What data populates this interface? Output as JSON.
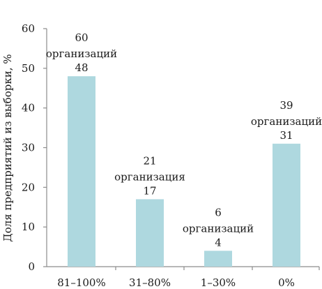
{
  "chart_data": {
    "type": "bar",
    "title": "",
    "xlabel": "",
    "ylabel": "Доля предприятий из выборки, %",
    "categories": [
      "81–100%",
      "31–80%",
      "1–30%",
      "0%"
    ],
    "values": [
      48,
      17,
      4,
      31
    ],
    "value_labels": [
      "48",
      "17",
      "4",
      "31"
    ],
    "annotations": [
      {
        "number": "60",
        "text": "организаций"
      },
      {
        "number": "21",
        "text": "организация"
      },
      {
        "number": "6",
        "text": "организаций"
      },
      {
        "number": "39",
        "text": "организаций"
      }
    ],
    "ylim": [
      0,
      60
    ],
    "yticks": [
      0,
      10,
      20,
      30,
      40,
      50,
      60
    ],
    "grid": false,
    "legend": "none",
    "bar_color": "#aed8df",
    "axis_color": "#8c8c8c"
  }
}
